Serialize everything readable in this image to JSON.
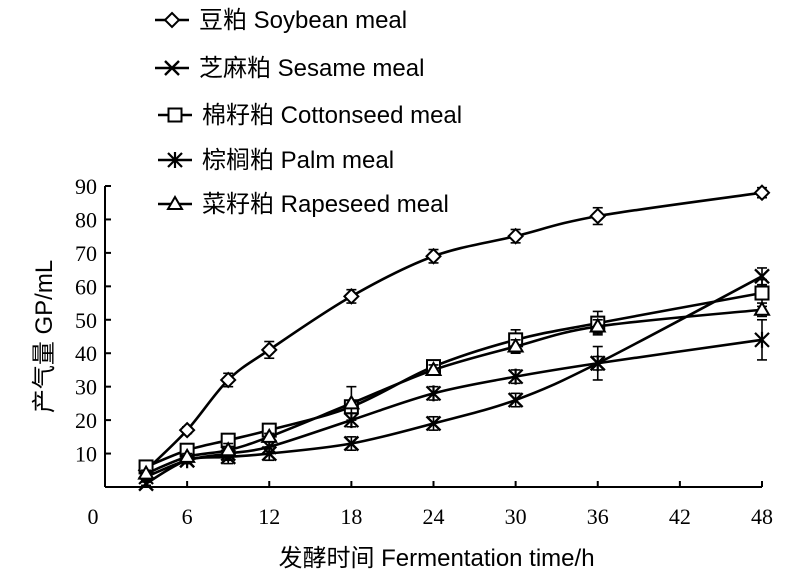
{
  "chart_data": {
    "type": "line",
    "xlabel": "发酵时间  Fermentation time/h",
    "ylabel": "产气量  GP/mL",
    "xlim": [
      0,
      48
    ],
    "ylim": [
      0,
      90
    ],
    "x_ticks": [
      0,
      6,
      12,
      18,
      24,
      30,
      36,
      42,
      48
    ],
    "y_ticks": [
      10,
      20,
      30,
      40,
      50,
      60,
      70,
      80,
      90
    ],
    "grid": false,
    "legend_position": "top-left",
    "series": [
      {
        "name": "豆粕  Soybean meal",
        "marker": "diamond",
        "x": [
          3,
          6,
          9,
          12,
          18,
          24,
          30,
          36,
          48
        ],
        "y": [
          5,
          17,
          32,
          41,
          57,
          69,
          75,
          81,
          88
        ],
        "err": [
          1,
          1,
          2,
          2.5,
          2,
          2,
          2,
          2.5,
          1.5
        ]
      },
      {
        "name": "芝麻粕  Sesame meal",
        "marker": "x",
        "x": [
          3,
          6,
          9,
          12,
          18,
          24,
          30,
          36,
          48
        ],
        "y": [
          1,
          8,
          9,
          10,
          13,
          19,
          26,
          37,
          63
        ],
        "err": [
          0.5,
          1,
          1,
          2,
          2,
          2,
          2,
          2,
          2.5
        ]
      },
      {
        "name": "棉籽粕  Cottonseed meal",
        "marker": "square",
        "x": [
          3,
          6,
          9,
          12,
          18,
          24,
          30,
          36,
          48
        ],
        "y": [
          6,
          11,
          14,
          17,
          24,
          36,
          44,
          49,
          58
        ],
        "err": [
          1,
          1,
          1,
          1,
          1.5,
          1.5,
          3,
          3.5,
          4
        ]
      },
      {
        "name": "棕榈粕  Palm meal",
        "marker": "asterisk",
        "x": [
          3,
          6,
          9,
          12,
          18,
          24,
          30,
          36,
          48
        ],
        "y": [
          3,
          8,
          10,
          12,
          20,
          28,
          33,
          37,
          44
        ],
        "err": [
          1,
          1,
          3,
          4,
          2,
          2,
          2,
          5,
          6
        ]
      },
      {
        "name": "菜籽粕  Rapeseed meal",
        "marker": "triangle",
        "x": [
          3,
          6,
          9,
          12,
          18,
          24,
          30,
          36,
          48
        ],
        "y": [
          4,
          9,
          11,
          15,
          25,
          35,
          42,
          48,
          53
        ],
        "err": [
          1,
          1,
          1,
          1,
          5,
          1.5,
          2,
          2,
          2
        ]
      }
    ]
  }
}
